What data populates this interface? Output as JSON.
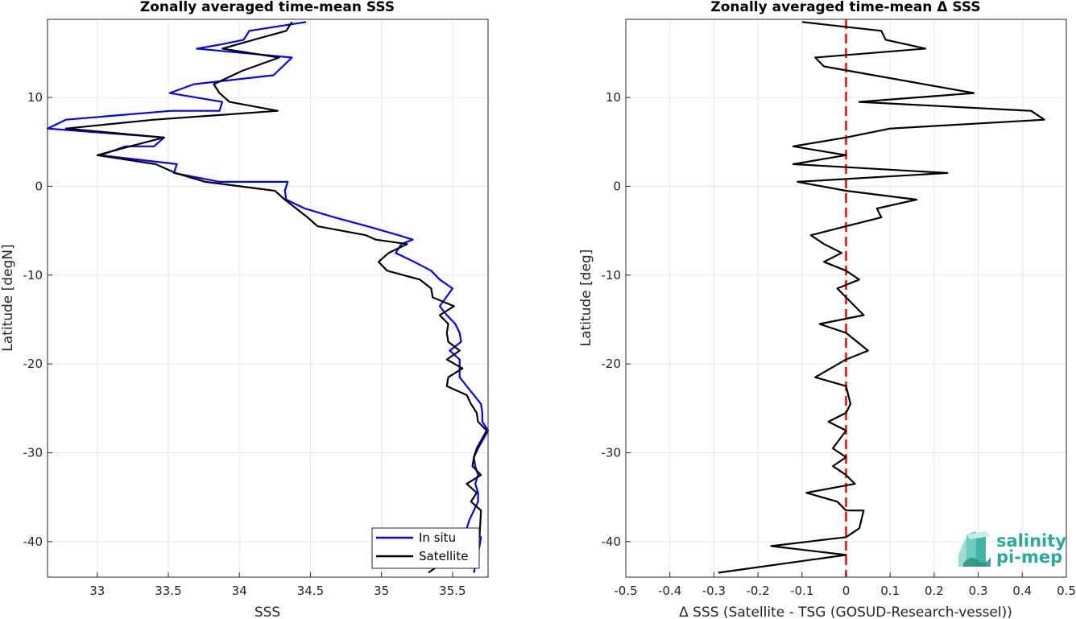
{
  "chart_data": [
    {
      "type": "line",
      "title": "Zonally averaged time-mean SSS",
      "xlabel": "SSS",
      "ylabel": "Latitude [degN]",
      "xlim": [
        32.65,
        35.75
      ],
      "ylim": [
        -44,
        18.8
      ],
      "xticks": [
        33,
        33.5,
        34,
        34.5,
        35,
        35.5
      ],
      "yticks": [
        -40,
        -30,
        -20,
        -10,
        0,
        10
      ],
      "grid": true,
      "legend": "bottom-right",
      "series": [
        {
          "name": "In situ",
          "color": "#0000ff",
          "x": [
            34.47,
            34.07,
            34.03,
            33.88,
            33.7,
            34.37,
            34.24,
            33.68,
            33.51,
            33.88,
            33.86,
            33.52,
            32.78,
            32.65,
            33.47,
            33.4,
            33.2,
            33.02,
            33.56,
            33.54,
            33.86,
            34.26,
            34.34,
            34.32,
            34.33,
            34.46,
            34.67,
            34.9,
            35.12,
            35.22,
            35.14,
            35.1,
            35.23,
            35.35,
            35.41,
            35.5,
            35.41,
            35.46,
            35.52,
            35.55,
            35.56,
            35.48,
            35.55,
            35.55,
            35.55,
            35.6,
            35.65,
            35.7,
            35.71,
            35.71,
            35.75,
            35.68,
            35.65,
            35.66,
            35.68,
            35.66,
            35.68,
            35.68,
            35.65,
            35.62,
            35.6,
            35.7,
            35.69,
            35.65
          ],
          "y": [
            18.5,
            17.5,
            16.5,
            16,
            15.5,
            14.5,
            12.5,
            11.5,
            10.5,
            9.5,
            8.5,
            8.5,
            7.5,
            6.5,
            5.5,
            4.5,
            4.5,
            3.5,
            2.5,
            1.5,
            0.5,
            0.5,
            0.5,
            -0.5,
            -1.5,
            -2.5,
            -3.5,
            -4.5,
            -5.5,
            -6,
            -6.5,
            -7.5,
            -8.5,
            -9.5,
            -10.5,
            -11.5,
            -13.5,
            -14.5,
            -15.5,
            -16.5,
            -17.5,
            -18.5,
            -19.5,
            -20.5,
            -21.5,
            -22.5,
            -23.5,
            -24.5,
            -25.5,
            -26.5,
            -27.5,
            -29.5,
            -30.5,
            -31.5,
            -32.5,
            -33.5,
            -34.5,
            -35.5,
            -36.5,
            -37.5,
            -38.5,
            -39.5,
            -40.5,
            -43.5
          ]
        },
        {
          "name": "Satellite",
          "color": "#000000",
          "x": [
            34.37,
            34.33,
            34.1,
            33.88,
            34.28,
            34.02,
            33.82,
            33.86,
            33.93,
            34.27,
            33.4,
            32.78,
            33.47,
            33.23,
            33.0,
            33.41,
            33.55,
            33.76,
            34.25,
            34.32,
            34.4,
            34.48,
            34.55,
            34.89,
            34.96,
            35.18,
            35.05,
            34.98,
            35.04,
            35.27,
            35.35,
            35.36,
            35.51,
            35.41,
            35.47,
            35.46,
            35.47,
            35.55,
            35.46,
            35.57,
            35.47,
            35.46,
            35.6,
            35.63,
            35.67,
            35.68,
            35.74,
            35.67,
            35.65,
            35.64,
            35.7,
            35.6,
            35.67,
            35.63,
            35.7,
            35.69,
            35.33
          ],
          "y": [
            18.5,
            17.5,
            16.5,
            15.5,
            14.5,
            13,
            11.5,
            10.5,
            9.5,
            8.5,
            7.5,
            6.5,
            5.5,
            4.5,
            3.5,
            2.5,
            1.5,
            0.5,
            -0.5,
            -1.5,
            -2.5,
            -3.5,
            -4.5,
            -5.5,
            -6,
            -6.5,
            -7.5,
            -8.5,
            -9.5,
            -10.5,
            -11.5,
            -12.5,
            -13.5,
            -14.5,
            -15.5,
            -16.5,
            -17.5,
            -18.5,
            -19.5,
            -20.5,
            -21.5,
            -22.5,
            -23.5,
            -24.5,
            -25.5,
            -26.5,
            -27.5,
            -29.5,
            -30.5,
            -31.5,
            -32.5,
            -33.5,
            -34.5,
            -35.5,
            -36.5,
            -39.5,
            -43.5
          ]
        }
      ]
    },
    {
      "type": "line",
      "title": "Zonally averaged time-mean Δ SSS",
      "xlabel": "Δ SSS (Satellite - TSG (GOSUD-Research-vessel))",
      "ylabel": "Latitude [deg]",
      "xlim": [
        -0.5,
        0.5
      ],
      "ylim": [
        -44,
        18.8
      ],
      "xticks": [
        -0.5,
        -0.4,
        -0.3,
        -0.2,
        -0.1,
        0,
        0.1,
        0.2,
        0.3,
        0.4,
        0.5
      ],
      "xticklabels": [
        "-0.5",
        "-0.4",
        "-0.3",
        "-0.2",
        "-0.1",
        "0",
        "0.1",
        "0.2",
        "0.3",
        "0.4",
        "0.5"
      ],
      "yticks": [
        -40,
        -30,
        -20,
        -10,
        0,
        10
      ],
      "grid": true,
      "reference_line": {
        "x": 0,
        "color": "#ff0000",
        "style": "dashed"
      },
      "series": [
        {
          "name": "",
          "color": "#000000",
          "x": [
            -0.1,
            0.08,
            0.09,
            0.18,
            -0.07,
            -0.05,
            0.29,
            0.03,
            0.42,
            0.45,
            0.1,
            0.0,
            -0.12,
            0.0,
            -0.12,
            0.23,
            -0.11,
            0.0,
            0.16,
            0.07,
            0.08,
            0.0,
            -0.08,
            -0.05,
            -0.01,
            -0.05,
            0.0,
            0.03,
            -0.02,
            0.0,
            0.02,
            0.04,
            -0.06,
            0.0,
            0.05,
            0.0,
            -0.07,
            0.0,
            0.01,
            0.0,
            -0.04,
            0.0,
            -0.03,
            0.0,
            -0.03,
            0.0,
            0.02,
            -0.09,
            -0.02,
            0.0,
            0.04,
            0.03,
            0.0,
            -0.17,
            0.0,
            -0.29
          ],
          "y": [
            18.5,
            17.5,
            16.5,
            15.5,
            14.5,
            13.5,
            10.5,
            9.5,
            8.5,
            7.5,
            6.5,
            5.5,
            4.5,
            3.5,
            2.5,
            1.5,
            0.5,
            -0.5,
            -1.5,
            -2.5,
            -3.5,
            -4.5,
            -5.5,
            -6.5,
            -7.5,
            -8.5,
            -9.5,
            -10.5,
            -11.5,
            -12.5,
            -13.5,
            -14.5,
            -15.5,
            -16.5,
            -18.5,
            -19.5,
            -21.5,
            -22.5,
            -24.5,
            -25.5,
            -26.5,
            -27.5,
            -29.5,
            -30.5,
            -31.5,
            -32.5,
            -33.5,
            -34.5,
            -35.5,
            -36.5,
            -36.5,
            -38.5,
            -39.5,
            -40.5,
            -41.5,
            -43.5
          ]
        }
      ]
    }
  ],
  "logo": {
    "line1": "salinity",
    "line2": "pi-mep",
    "color": "#2aa89a"
  }
}
